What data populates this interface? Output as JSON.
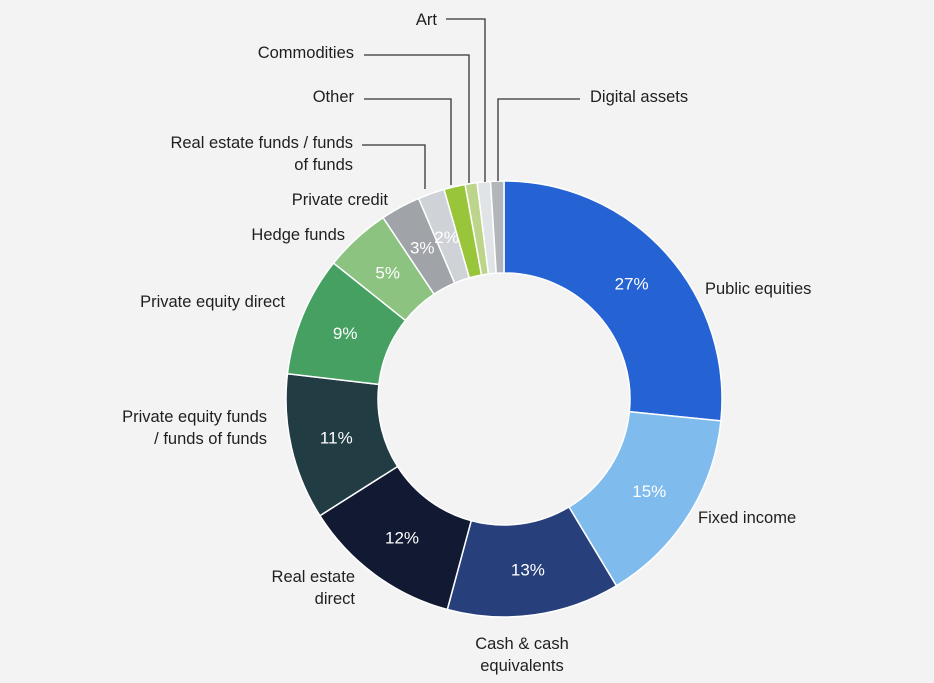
{
  "chart_data": {
    "type": "pie",
    "donut": true,
    "title": "",
    "legend": "none",
    "grid": false,
    "slices": [
      {
        "name": "Public equities",
        "lines": [
          "Public equities"
        ],
        "value": 27,
        "display": "27%",
        "color": "#2563d4",
        "text_color": "#ffffff"
      },
      {
        "name": "Fixed income",
        "lines": [
          "Fixed income"
        ],
        "value": 15,
        "display": "15%",
        "color": "#7fbbec",
        "text_color": "#ffffff"
      },
      {
        "name": "Cash & cash equivalents",
        "lines": [
          "Cash & cash",
          "equivalents"
        ],
        "value": 13,
        "display": "13%",
        "color": "#27407c",
        "text_color": "#ffffff"
      },
      {
        "name": "Real estate direct",
        "lines": [
          "Real estate",
          "direct"
        ],
        "value": 12,
        "display": "12%",
        "color": "#121a33",
        "text_color": "#ffffff"
      },
      {
        "name": "Private equity funds / funds of funds",
        "lines": [
          "Private equity funds",
          "/ funds of funds"
        ],
        "value": 11,
        "display": "11%",
        "color": "#223c44",
        "text_color": "#ffffff"
      },
      {
        "name": "Private equity direct",
        "lines": [
          "Private equity direct"
        ],
        "value": 9,
        "display": "9%",
        "color": "#45a062",
        "text_color": "#ffffff"
      },
      {
        "name": "Hedge funds",
        "lines": [
          "Hedge funds"
        ],
        "value": 5,
        "display": "5%",
        "color": "#8cc381",
        "text_color": "#ffffff"
      },
      {
        "name": "Private credit",
        "lines": [
          "Private credit"
        ],
        "value": 3,
        "display": "3%",
        "color": "#a0a3a7",
        "text_color": "#ffffff"
      },
      {
        "name": "Real estate funds / funds of funds",
        "lines": [
          "Real estate funds / funds",
          "of funds"
        ],
        "value": 2,
        "display": "2%",
        "color": "#cfd3d7",
        "text_color": "#ffffff"
      },
      {
        "name": "Other",
        "lines": [
          "Other"
        ],
        "value": 1.6,
        "display": "",
        "color": "#98c53a",
        "text_color": "#ffffff"
      },
      {
        "name": "Commodities",
        "lines": [
          "Commodities"
        ],
        "value": 0.9,
        "display": "",
        "color": "#bcd58a",
        "text_color": "#ffffff"
      },
      {
        "name": "Art",
        "lines": [
          "Art"
        ],
        "value": 1.0,
        "display": "",
        "color": "#e1e4e7",
        "text_color": "#ffffff"
      },
      {
        "name": "Digital assets",
        "lines": [
          "Digital assets"
        ],
        "value": 1.0,
        "display": "",
        "color": "#b2b6bb",
        "text_color": "#ffffff"
      }
    ]
  }
}
